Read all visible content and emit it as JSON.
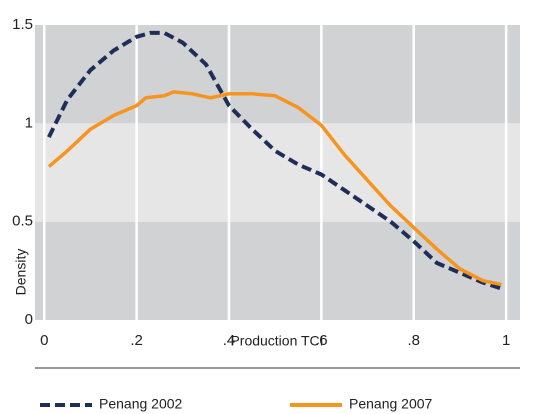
{
  "chart_data": {
    "type": "line",
    "xlabel": "Production TCI",
    "ylabel": "Density",
    "xlim": [
      -0.02,
      1.03
    ],
    "ylim": [
      0,
      1.5
    ],
    "xticks": [
      0,
      {
        "value": 0.2,
        "label": ".2"
      },
      {
        "value": 0.4,
        "label": ".4"
      },
      {
        "value": 0.6,
        "label": ".6"
      },
      {
        "value": 0.8,
        "label": ".8"
      },
      1
    ],
    "yticks": [
      0,
      0.5,
      1,
      1.5
    ],
    "grid": true,
    "legend": "bottom",
    "series": [
      {
        "name": "Penang 2002",
        "color": "#1f2d5a",
        "dash": true,
        "x": [
          0.01,
          0.05,
          0.1,
          0.15,
          0.2,
          0.23,
          0.26,
          0.3,
          0.35,
          0.4,
          0.45,
          0.5,
          0.55,
          0.6,
          0.65,
          0.7,
          0.75,
          0.8,
          0.85,
          0.9,
          0.95,
          0.99
        ],
        "values": [
          0.93,
          1.12,
          1.27,
          1.37,
          1.44,
          1.46,
          1.46,
          1.41,
          1.3,
          1.09,
          0.97,
          0.86,
          0.79,
          0.74,
          0.66,
          0.58,
          0.5,
          0.4,
          0.29,
          0.24,
          0.19,
          0.16
        ]
      },
      {
        "name": "Penang 2007",
        "color": "#f7941d",
        "dash": false,
        "x": [
          0.01,
          0.05,
          0.1,
          0.15,
          0.2,
          0.22,
          0.26,
          0.28,
          0.32,
          0.36,
          0.4,
          0.45,
          0.5,
          0.55,
          0.6,
          0.65,
          0.7,
          0.75,
          0.8,
          0.85,
          0.9,
          0.95,
          0.99
        ],
        "values": [
          0.78,
          0.86,
          0.97,
          1.04,
          1.09,
          1.13,
          1.14,
          1.16,
          1.15,
          1.13,
          1.15,
          1.15,
          1.14,
          1.08,
          0.99,
          0.84,
          0.71,
          0.58,
          0.47,
          0.36,
          0.26,
          0.2,
          0.18
        ]
      }
    ]
  }
}
